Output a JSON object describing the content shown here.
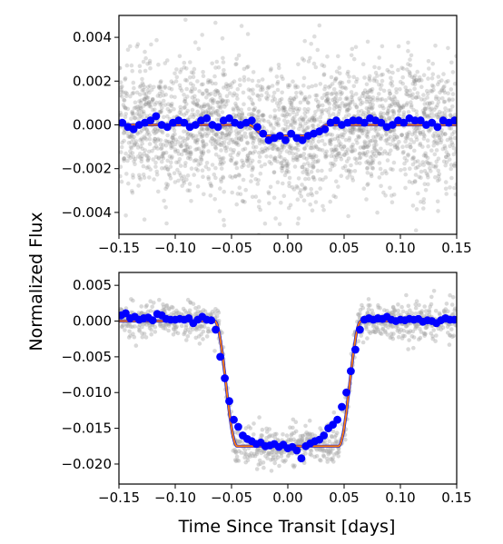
{
  "chart_data": [
    {
      "type": "scatter",
      "panel": "top",
      "xlim": [
        -0.15,
        0.15
      ],
      "ylim": [
        -0.005,
        0.005
      ],
      "xticks": [
        -0.15,
        -0.1,
        -0.05,
        0.0,
        0.05,
        0.1,
        0.15
      ],
      "xtick_labels": [
        "−0.15",
        "−0.10",
        "−0.05",
        "0.00",
        "0.05",
        "0.10",
        "0.15"
      ],
      "yticks": [
        -0.004,
        -0.002,
        0.0,
        0.002,
        0.004
      ],
      "ytick_labels": [
        "−0.004",
        "−0.002",
        "0.000",
        "0.002",
        "0.004"
      ],
      "grid": false,
      "raw_scatter": {
        "color": "#888888",
        "count": 2400,
        "scatter_sigma": 0.0015
      },
      "model": {
        "transit_depth": 0.0005,
        "t_ingress_start": -0.035,
        "t_ingress_end": -0.02,
        "t_egress_start": 0.02,
        "t_egress_end": 0.035,
        "color": "#ff7f0e"
      },
      "binned": {
        "color": "#0000ff",
        "x": [
          -0.147,
          -0.142,
          -0.137,
          -0.132,
          -0.127,
          -0.122,
          -0.117,
          -0.112,
          -0.107,
          -0.102,
          -0.097,
          -0.092,
          -0.087,
          -0.082,
          -0.077,
          -0.072,
          -0.067,
          -0.062,
          -0.057,
          -0.052,
          -0.047,
          -0.042,
          -0.037,
          -0.032,
          -0.027,
          -0.022,
          -0.017,
          -0.012,
          -0.007,
          -0.002,
          0.003,
          0.008,
          0.013,
          0.018,
          0.023,
          0.028,
          0.033,
          0.038,
          0.043,
          0.048,
          0.053,
          0.058,
          0.063,
          0.068,
          0.073,
          0.078,
          0.083,
          0.088,
          0.093,
          0.098,
          0.103,
          0.108,
          0.113,
          0.118,
          0.123,
          0.128,
          0.133,
          0.138,
          0.143,
          0.148
        ],
        "y": [
          0.0001,
          -0.0001,
          -0.0002,
          0.0,
          0.0001,
          0.0002,
          0.0004,
          0.0,
          -0.0001,
          0.0001,
          0.0002,
          0.0001,
          -0.0001,
          0.0,
          0.0002,
          0.0003,
          0.0,
          -0.0001,
          0.0002,
          0.0003,
          0.0001,
          0.0,
          0.0001,
          0.0002,
          -0.0001,
          -0.0004,
          -0.0007,
          -0.0006,
          -0.0005,
          -0.0007,
          -0.0004,
          -0.0006,
          -0.0007,
          -0.0005,
          -0.0004,
          -0.0003,
          -0.0002,
          0.0001,
          0.0002,
          0.0,
          0.0001,
          0.0002,
          0.0002,
          0.0001,
          0.0003,
          0.0002,
          0.0001,
          -0.0001,
          0.0,
          0.0002,
          0.0001,
          0.0003,
          0.0002,
          0.0002,
          0.0,
          0.0001,
          -0.0001,
          0.0002,
          0.0001,
          0.0002
        ]
      }
    },
    {
      "type": "scatter",
      "panel": "bottom",
      "xlim": [
        -0.15,
        0.15
      ],
      "ylim": [
        -0.0228,
        0.0068
      ],
      "xticks": [
        -0.15,
        -0.1,
        -0.05,
        0.0,
        0.05,
        0.1,
        0.15
      ],
      "xtick_labels": [
        "−0.15",
        "−0.10",
        "−0.05",
        "0.00",
        "0.05",
        "0.10",
        "0.15"
      ],
      "yticks": [
        0.005,
        0.0,
        -0.005,
        -0.01,
        -0.015,
        -0.02
      ],
      "ytick_labels": [
        "0.005",
        "0.000",
        "−0.005",
        "−0.010",
        "−0.015",
        "−0.020"
      ],
      "xlabel": "Time Since Transit [days]",
      "grid": false,
      "raw_scatter": {
        "color": "#aaaaaa",
        "count": 1000,
        "scatter_sigma": 0.0013
      },
      "model": {
        "transit_depth": 0.0175,
        "t_ingress_start": -0.065,
        "t_ingress_end": -0.045,
        "t_egress_start": 0.045,
        "t_egress_end": 0.065,
        "color": "#ff7f0e"
      },
      "binned": {
        "color": "#0000ff",
        "x": [
          -0.148,
          -0.144,
          -0.14,
          -0.136,
          -0.132,
          -0.128,
          -0.124,
          -0.12,
          -0.116,
          -0.112,
          -0.108,
          -0.104,
          -0.1,
          -0.096,
          -0.092,
          -0.088,
          -0.084,
          -0.08,
          -0.076,
          -0.072,
          -0.068,
          -0.064,
          -0.06,
          -0.056,
          -0.052,
          -0.048,
          -0.044,
          -0.04,
          -0.036,
          -0.032,
          -0.028,
          -0.024,
          -0.02,
          -0.016,
          -0.012,
          -0.008,
          -0.004,
          0.0,
          0.004,
          0.008,
          0.012,
          0.016,
          0.02,
          0.024,
          0.028,
          0.032,
          0.036,
          0.04,
          0.044,
          0.048,
          0.052,
          0.056,
          0.06,
          0.064,
          0.068,
          0.072,
          0.076,
          0.08,
          0.084,
          0.088,
          0.092,
          0.096,
          0.1,
          0.104,
          0.108,
          0.112,
          0.116,
          0.12,
          0.124,
          0.128,
          0.132,
          0.136,
          0.14,
          0.144,
          0.148
        ],
        "y": [
          0.0008,
          0.0011,
          0.0004,
          0.0006,
          0.0002,
          0.0004,
          0.0005,
          0.0001,
          0.001,
          0.0008,
          0.0003,
          0.0002,
          0.0002,
          0.0003,
          0.0002,
          0.0004,
          -0.0003,
          0.0002,
          0.0006,
          0.0002,
          0.0001,
          -0.0012,
          -0.005,
          -0.008,
          -0.0112,
          -0.0138,
          -0.0148,
          -0.016,
          -0.0165,
          -0.0168,
          -0.0172,
          -0.017,
          -0.0175,
          -0.0174,
          -0.0172,
          -0.0176,
          -0.0173,
          -0.0178,
          -0.0176,
          -0.0181,
          -0.0192,
          -0.0175,
          -0.0171,
          -0.0168,
          -0.0166,
          -0.016,
          -0.015,
          -0.0145,
          -0.0138,
          -0.012,
          -0.01,
          -0.007,
          -0.004,
          -0.0012,
          0.0002,
          0.0004,
          0.0002,
          0.0004,
          0.0003,
          0.0006,
          0.0002,
          0.0,
          0.0002,
          0.0001,
          0.0003,
          0.0002,
          0.0003,
          -0.0001,
          0.0001,
          0.0,
          -0.0003,
          0.0001,
          0.0004,
          0.0002,
          0.0002
        ]
      }
    }
  ],
  "shared_ylabel": "Normalized Flux"
}
